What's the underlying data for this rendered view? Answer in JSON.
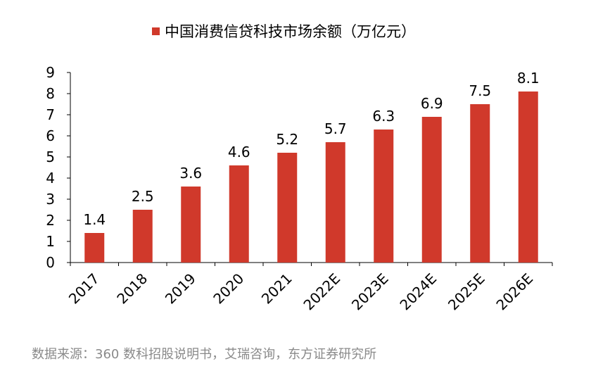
{
  "chart_data": {
    "type": "bar",
    "title": "",
    "legend": {
      "label": "中国消费信贷科技市场余额（万亿元）",
      "position": "top"
    },
    "categories": [
      "2017",
      "2018",
      "2019",
      "2020",
      "2021",
      "2022E",
      "2023E",
      "2024E",
      "2025E",
      "2026E"
    ],
    "series": [
      {
        "name": "中国消费信贷科技市场余额（万亿元）",
        "values": [
          1.4,
          2.5,
          3.6,
          4.6,
          5.2,
          5.7,
          6.3,
          6.9,
          7.5,
          8.1
        ]
      }
    ],
    "ylim": [
      0,
      9
    ],
    "yticks": [
      "0",
      "1",
      "2",
      "3",
      "4",
      "5",
      "6",
      "7",
      "8",
      "9"
    ],
    "xlabel": "",
    "ylabel": "",
    "grid": false,
    "bar_color": "#d0392b"
  },
  "source": "数据来源：360 数科招股说明书，艾瑞咨询，东方证券研究所"
}
